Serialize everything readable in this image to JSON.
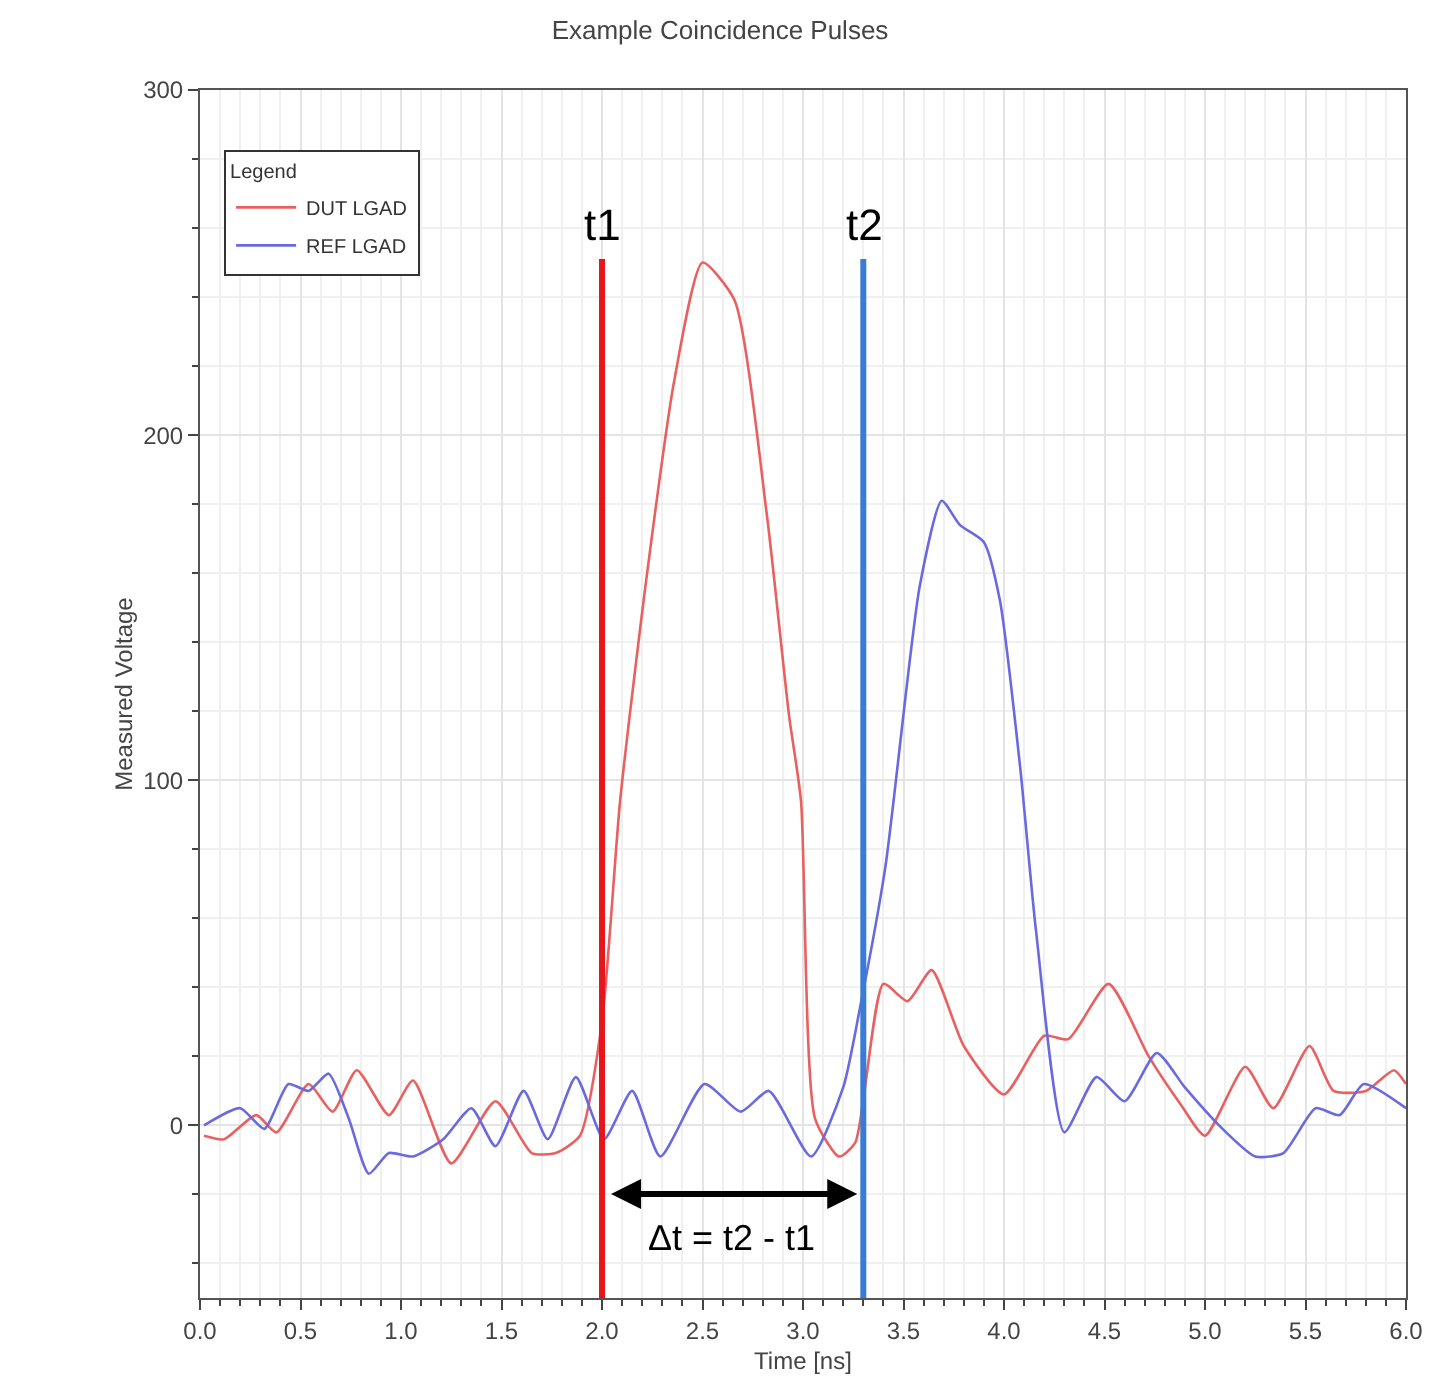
{
  "chart_data": {
    "type": "line",
    "title": "Example Coincidence Pulses",
    "xlabel": "Time [ns]",
    "ylabel": "Measured Voltage",
    "legend_title": "Legend",
    "series": [
      {
        "name": "DUT LGAD",
        "color": "#e8605f",
        "x": [
          0.02,
          0.12,
          0.28,
          0.38,
          0.54,
          0.66,
          0.78,
          0.94,
          1.06,
          1.25,
          1.47,
          1.65,
          1.77,
          1.89,
          2.0,
          2.09,
          2.22,
          2.36,
          2.5,
          2.66,
          2.82,
          2.93,
          2.99,
          3.06,
          3.18,
          3.26,
          3.4,
          3.52,
          3.64,
          3.8,
          4.0,
          4.2,
          4.32,
          4.52,
          4.72,
          4.88,
          5.0,
          5.2,
          5.34,
          5.52,
          5.64,
          5.8,
          5.94,
          6.0
        ],
        "values": [
          -3,
          -4,
          3,
          -2,
          12,
          4,
          16,
          3,
          13,
          -11,
          7,
          -8,
          -8,
          -3,
          30,
          94,
          158,
          216,
          250,
          239,
          177,
          119,
          94,
          2,
          -9,
          -5,
          41,
          36,
          45,
          23,
          9,
          26,
          25,
          41,
          20,
          6,
          -3,
          17,
          5,
          23,
          10,
          10,
          16,
          12
        ]
      },
      {
        "name": "REF LGAD",
        "color": "#6a6ae0",
        "x": [
          0.02,
          0.2,
          0.32,
          0.44,
          0.54,
          0.64,
          0.74,
          0.84,
          0.94,
          1.06,
          1.21,
          1.35,
          1.47,
          1.61,
          1.73,
          1.87,
          2.01,
          2.15,
          2.29,
          2.51,
          2.69,
          2.83,
          3.04,
          3.2,
          3.28,
          3.41,
          3.58,
          3.69,
          3.78,
          3.9,
          3.98,
          4.08,
          4.16,
          4.3,
          4.46,
          4.6,
          4.76,
          4.9,
          5.07,
          5.25,
          5.39,
          5.55,
          5.67,
          5.79,
          6.0
        ],
        "values": [
          0,
          5,
          -1,
          12,
          10,
          15,
          2,
          -14,
          -8,
          -9,
          -4,
          5,
          -6,
          10,
          -4,
          14,
          -4,
          10,
          -9,
          12,
          4,
          10,
          -9,
          11,
          33,
          75,
          156,
          181,
          174,
          169,
          152,
          104,
          56,
          -2,
          14,
          7,
          21,
          11,
          0,
          -9,
          -8,
          5,
          3,
          12,
          5
        ]
      }
    ],
    "xlim": [
      0,
      6
    ],
    "xticks": [
      {
        "value": 0,
        "label": "0.0"
      },
      {
        "value": 0.5,
        "label": "0.5"
      },
      {
        "value": 1,
        "label": "1.0"
      },
      {
        "value": 1.5,
        "label": "1.5"
      },
      {
        "value": 2,
        "label": "2.0"
      },
      {
        "value": 2.5,
        "label": "2.5"
      },
      {
        "value": 3,
        "label": "3.0"
      },
      {
        "value": 3.5,
        "label": "3.5"
      },
      {
        "value": 4,
        "label": "4.0"
      },
      {
        "value": 4.5,
        "label": "4.5"
      },
      {
        "value": 5,
        "label": "5.0"
      },
      {
        "value": 5.5,
        "label": "5.5"
      },
      {
        "value": 6,
        "label": "6.0"
      }
    ],
    "ylim": [
      -50,
      300
    ],
    "yticks": [
      0,
      100,
      200,
      300
    ],
    "ref_lines": [
      {
        "axis": "x",
        "value": 2.0,
        "label": "t1",
        "color": "#e8161b"
      },
      {
        "axis": "x",
        "value": 3.3,
        "label": "t2",
        "color": "#3a7bd5"
      }
    ],
    "annotations": [
      "Δt = t2 - t1"
    ],
    "grid": true,
    "legend": "top left"
  }
}
